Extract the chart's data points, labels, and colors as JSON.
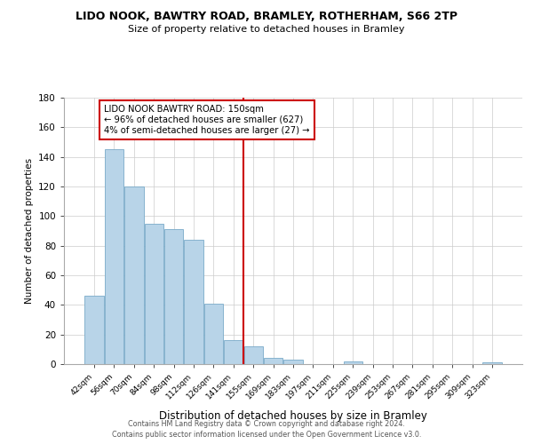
{
  "title": "LIDO NOOK, BAWTRY ROAD, BRAMLEY, ROTHERHAM, S66 2TP",
  "subtitle": "Size of property relative to detached houses in Bramley",
  "xlabel": "Distribution of detached houses by size in Bramley",
  "ylabel": "Number of detached properties",
  "bar_labels": [
    "42sqm",
    "56sqm",
    "70sqm",
    "84sqm",
    "98sqm",
    "112sqm",
    "126sqm",
    "141sqm",
    "155sqm",
    "169sqm",
    "183sqm",
    "197sqm",
    "211sqm",
    "225sqm",
    "239sqm",
    "253sqm",
    "267sqm",
    "281sqm",
    "295sqm",
    "309sqm",
    "323sqm"
  ],
  "bar_values": [
    46,
    145,
    120,
    95,
    91,
    84,
    41,
    16,
    12,
    4,
    3,
    0,
    0,
    2,
    0,
    0,
    0,
    0,
    0,
    0,
    1
  ],
  "bar_color": "#b8d4e8",
  "bar_edge_color": "#7aaac8",
  "vline_x": 7.5,
  "vline_color": "#cc0000",
  "annotation_title": "LIDO NOOK BAWTRY ROAD: 150sqm",
  "annotation_line1": "← 96% of detached houses are smaller (627)",
  "annotation_line2": "4% of semi-detached houses are larger (27) →",
  "annotation_box_edge": "#cc0000",
  "ylim": [
    0,
    180
  ],
  "yticks": [
    0,
    20,
    40,
    60,
    80,
    100,
    120,
    140,
    160,
    180
  ],
  "footer1": "Contains HM Land Registry data © Crown copyright and database right 2024.",
  "footer2": "Contains public sector information licensed under the Open Government Licence v3.0."
}
